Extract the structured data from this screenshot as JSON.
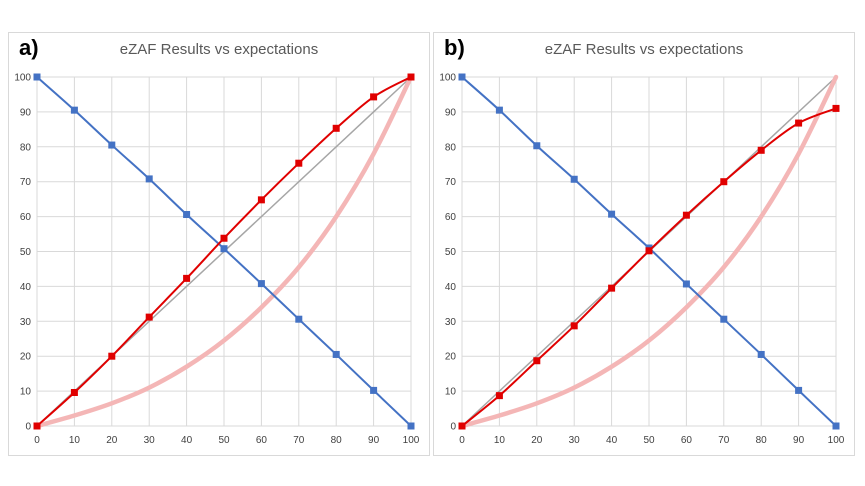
{
  "chart_data": [
    {
      "label": "a)",
      "type": "line",
      "title": "eZAF Results vs expectations",
      "xlim": [
        0,
        100
      ],
      "ylim": [
        0,
        100
      ],
      "x_ticks": [
        0,
        10,
        20,
        30,
        40,
        50,
        60,
        70,
        80,
        90,
        100
      ],
      "y_ticks": [
        0,
        10,
        20,
        30,
        40,
        50,
        60,
        70,
        80,
        90,
        100
      ],
      "grid": true,
      "series": [
        {
          "color": "#a6a6a6",
          "markers": false,
          "x": [
            0,
            100
          ],
          "y": [
            0,
            100
          ]
        },
        {
          "color": "#f4b6b6",
          "markers": false,
          "x": [
            0,
            10,
            20,
            30,
            40,
            50,
            60,
            70,
            80,
            90,
            100
          ],
          "y": [
            0,
            3,
            6.5,
            11,
            17,
            24.5,
            34,
            45.5,
            60,
            78,
            100
          ]
        },
        {
          "color": "#4472c4",
          "markers": true,
          "x": [
            0,
            10,
            20,
            30,
            40,
            50,
            60,
            70,
            80,
            90,
            100
          ],
          "y": [
            100,
            90.5,
            80.5,
            70.8,
            60.6,
            50.8,
            40.8,
            30.6,
            20.5,
            10.2,
            0
          ]
        },
        {
          "color": "#e00000",
          "markers": true,
          "x": [
            0,
            10,
            20,
            30,
            40,
            50,
            60,
            70,
            80,
            90,
            100
          ],
          "y": [
            0,
            9.6,
            20,
            31.2,
            42.3,
            53.8,
            64.8,
            75.3,
            85.3,
            94.3,
            100
          ]
        }
      ]
    },
    {
      "label": "b)",
      "type": "line",
      "title": "eZAF Results vs expectations",
      "xlim": [
        0,
        100
      ],
      "ylim": [
        0,
        100
      ],
      "x_ticks": [
        0,
        10,
        20,
        30,
        40,
        50,
        60,
        70,
        80,
        90,
        100
      ],
      "y_ticks": [
        0,
        10,
        20,
        30,
        40,
        50,
        60,
        70,
        80,
        90,
        100
      ],
      "grid": true,
      "series": [
        {
          "color": "#a6a6a6",
          "markers": false,
          "x": [
            0,
            100
          ],
          "y": [
            0,
            100
          ]
        },
        {
          "color": "#f4b6b6",
          "markers": false,
          "x": [
            0,
            10,
            20,
            30,
            40,
            50,
            60,
            70,
            80,
            90,
            100
          ],
          "y": [
            0,
            3,
            6.5,
            11,
            17,
            24.5,
            34,
            45.5,
            60,
            78,
            100
          ]
        },
        {
          "color": "#4472c4",
          "markers": true,
          "x": [
            0,
            10,
            20,
            30,
            40,
            50,
            60,
            70,
            80,
            90,
            100
          ],
          "y": [
            100,
            90.5,
            80.3,
            70.7,
            60.7,
            51,
            40.7,
            30.6,
            20.5,
            10.2,
            0
          ]
        },
        {
          "color": "#e00000",
          "markers": true,
          "x": [
            0,
            10,
            20,
            30,
            40,
            50,
            60,
            70,
            80,
            90,
            100
          ],
          "y": [
            0,
            8.7,
            18.7,
            28.7,
            39.5,
            50.2,
            60.4,
            70,
            79,
            86.8,
            91
          ]
        }
      ]
    }
  ]
}
